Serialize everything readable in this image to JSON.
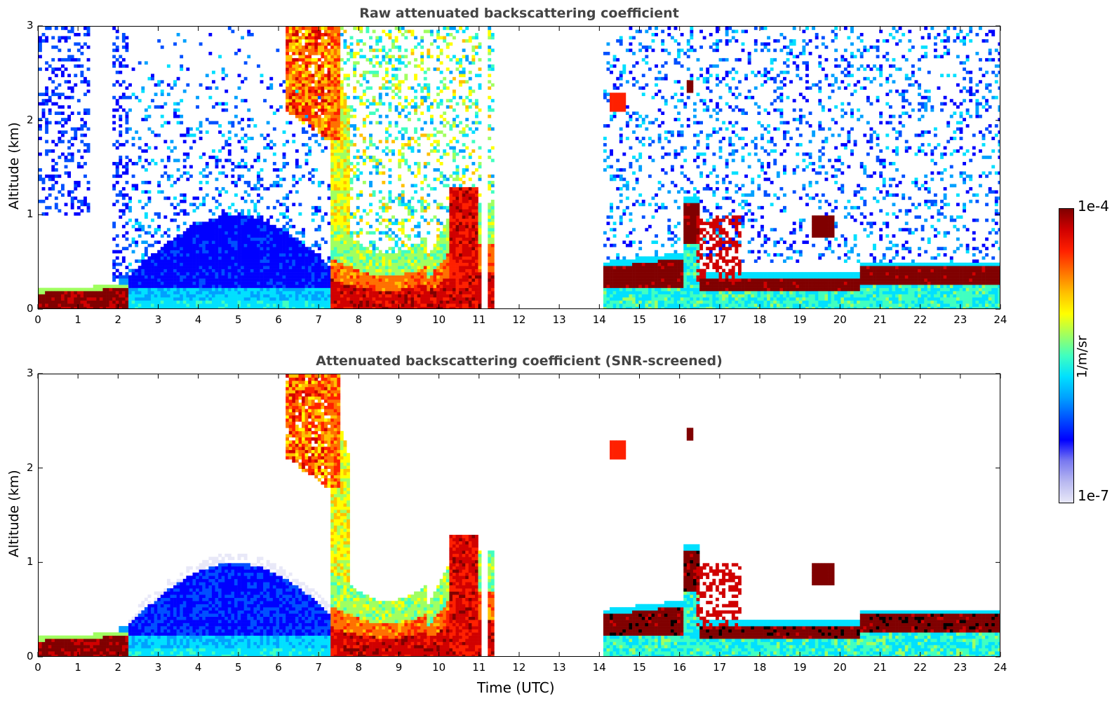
{
  "chart_data": [
    {
      "type": "heatmap",
      "title": "Raw attenuated backscattering coefficient",
      "xlabel": "",
      "ylabel": "Altitude (km)",
      "xlim": [
        0,
        24
      ],
      "ylim": [
        0,
        3
      ],
      "xticks": [
        "0",
        "1",
        "2",
        "3",
        "4",
        "5",
        "6",
        "7",
        "8",
        "9",
        "10",
        "11",
        "12",
        "13",
        "14",
        "15",
        "16",
        "17",
        "18",
        "19",
        "20",
        "21",
        "22",
        "23",
        "24"
      ],
      "yticks": [
        "0",
        "1",
        "2",
        "3"
      ],
      "gaps_utc": [
        [
          11.35,
          14.1
        ]
      ],
      "layers": [
        {
          "name_visible": false,
          "t": [
            0,
            2.1
          ],
          "alt_km": [
            0.0,
            0.25
          ],
          "level": "high"
        },
        {
          "name_visible": false,
          "t": [
            2.1,
            7.2
          ],
          "alt_km": [
            0.0,
            1.0
          ],
          "level": "low"
        },
        {
          "name_visible": false,
          "t": [
            6.3,
            7.3
          ],
          "alt_km": [
            1.8,
            3.0
          ],
          "level": "medium-high"
        },
        {
          "name_visible": false,
          "t": [
            7.2,
            11.0
          ],
          "alt_km": [
            0.0,
            1.2
          ],
          "level": "high"
        },
        {
          "name_visible": false,
          "t": [
            14.2,
            16.4
          ],
          "alt_km": [
            0.2,
            0.6
          ],
          "level": "high"
        },
        {
          "name_visible": false,
          "t": [
            16.1,
            16.5
          ],
          "alt_km": [
            0.7,
            1.15
          ],
          "level": "high"
        },
        {
          "name_visible": false,
          "t": [
            16.5,
            20.5
          ],
          "alt_km": [
            0.2,
            0.35
          ],
          "level": "high"
        },
        {
          "name_visible": false,
          "t": [
            19.3,
            19.8
          ],
          "alt_km": [
            0.75,
            1.0
          ],
          "level": "high"
        },
        {
          "name_visible": false,
          "t": [
            20.5,
            24.0
          ],
          "alt_km": [
            0.3,
            0.5
          ],
          "level": "high"
        }
      ]
    },
    {
      "type": "heatmap",
      "title": "Attenuated backscattering coefficient (SNR-screened)",
      "xlabel": "Time (UTC)",
      "ylabel": "Altitude (km)",
      "xlim": [
        0,
        24
      ],
      "ylim": [
        0,
        3
      ],
      "xticks": [
        "0",
        "1",
        "2",
        "3",
        "4",
        "5",
        "6",
        "7",
        "8",
        "9",
        "10",
        "11",
        "12",
        "13",
        "14",
        "15",
        "16",
        "17",
        "18",
        "19",
        "20",
        "21",
        "22",
        "23",
        "24"
      ],
      "yticks": [
        "0",
        "1",
        "2",
        "3"
      ],
      "gaps_utc": [
        [
          11.35,
          14.1
        ]
      ]
    }
  ],
  "colorbar": {
    "min_label": "1e-7",
    "max_label": "1e-4",
    "unit": "1/m/sr",
    "colormap": [
      "#e8e8f8",
      "#b8b8f0",
      "#7878f0",
      "#0000ff",
      "#0050ff",
      "#00a0ff",
      "#00e0ff",
      "#40ffc0",
      "#a0ff60",
      "#ffff00",
      "#ffc000",
      "#ff7000",
      "#ff2000",
      "#d00000",
      "#800000"
    ]
  }
}
